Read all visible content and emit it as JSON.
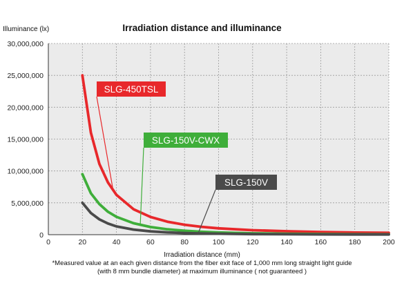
{
  "chart_data": {
    "type": "line",
    "title": "Irradiation distance and illuminance",
    "ylabel": "Illuminance (lx)",
    "xlabel": "Irradiation distance (mm)",
    "notes": [
      "*Measured value at an each given distance from the fiber exit face of 1,000 mm long straight light guide",
      "(with 8 mm bundle diameter) at maximum illuminance ( not guaranteed )"
    ],
    "xlim": [
      0,
      200
    ],
    "ylim": [
      0,
      30000000
    ],
    "x_ticks": [
      "0",
      "20",
      "40",
      "60",
      "80",
      "100",
      "120",
      "140",
      "160",
      "180",
      "200"
    ],
    "y_ticks": [
      "0",
      "5,000,000",
      "10,000,000",
      "15,000,000",
      "20,000,000",
      "25,000,000",
      "30,000,000"
    ],
    "grid": true,
    "plot_background": "#ebebeb",
    "series": [
      {
        "name": "SLG-450TSL",
        "color": "#e8282b",
        "x": [
          20,
          25,
          30,
          35,
          40,
          50,
          60,
          70,
          80,
          90,
          100,
          120,
          140,
          160,
          180,
          200
        ],
        "y": [
          25000000,
          16000000,
          11100000,
          8200000,
          6250000,
          4000000,
          2780000,
          2040000,
          1560000,
          1230000,
          1000000,
          700000,
          540000,
          420000,
          340000,
          290000
        ]
      },
      {
        "name": "SLG-150V-CWX",
        "color": "#3fae3a",
        "x": [
          20,
          25,
          30,
          35,
          40,
          50,
          60,
          70,
          80,
          90,
          100,
          120,
          140,
          160,
          180,
          200
        ],
        "y": [
          9500000,
          6500000,
          4800000,
          3600000,
          2800000,
          1800000,
          1200000,
          850000,
          620000,
          460000,
          350000,
          220000,
          150000,
          110000,
          80000,
          60000
        ]
      },
      {
        "name": "SLG-150V",
        "color": "#4a4a4a",
        "x": [
          20,
          25,
          30,
          35,
          40,
          50,
          60,
          70,
          80,
          90,
          100,
          120,
          140,
          160,
          180,
          200
        ],
        "y": [
          5000000,
          3400000,
          2400000,
          1750000,
          1300000,
          800000,
          520000,
          360000,
          260000,
          190000,
          150000,
          90000,
          60000,
          45000,
          35000,
          28000
        ]
      }
    ]
  }
}
